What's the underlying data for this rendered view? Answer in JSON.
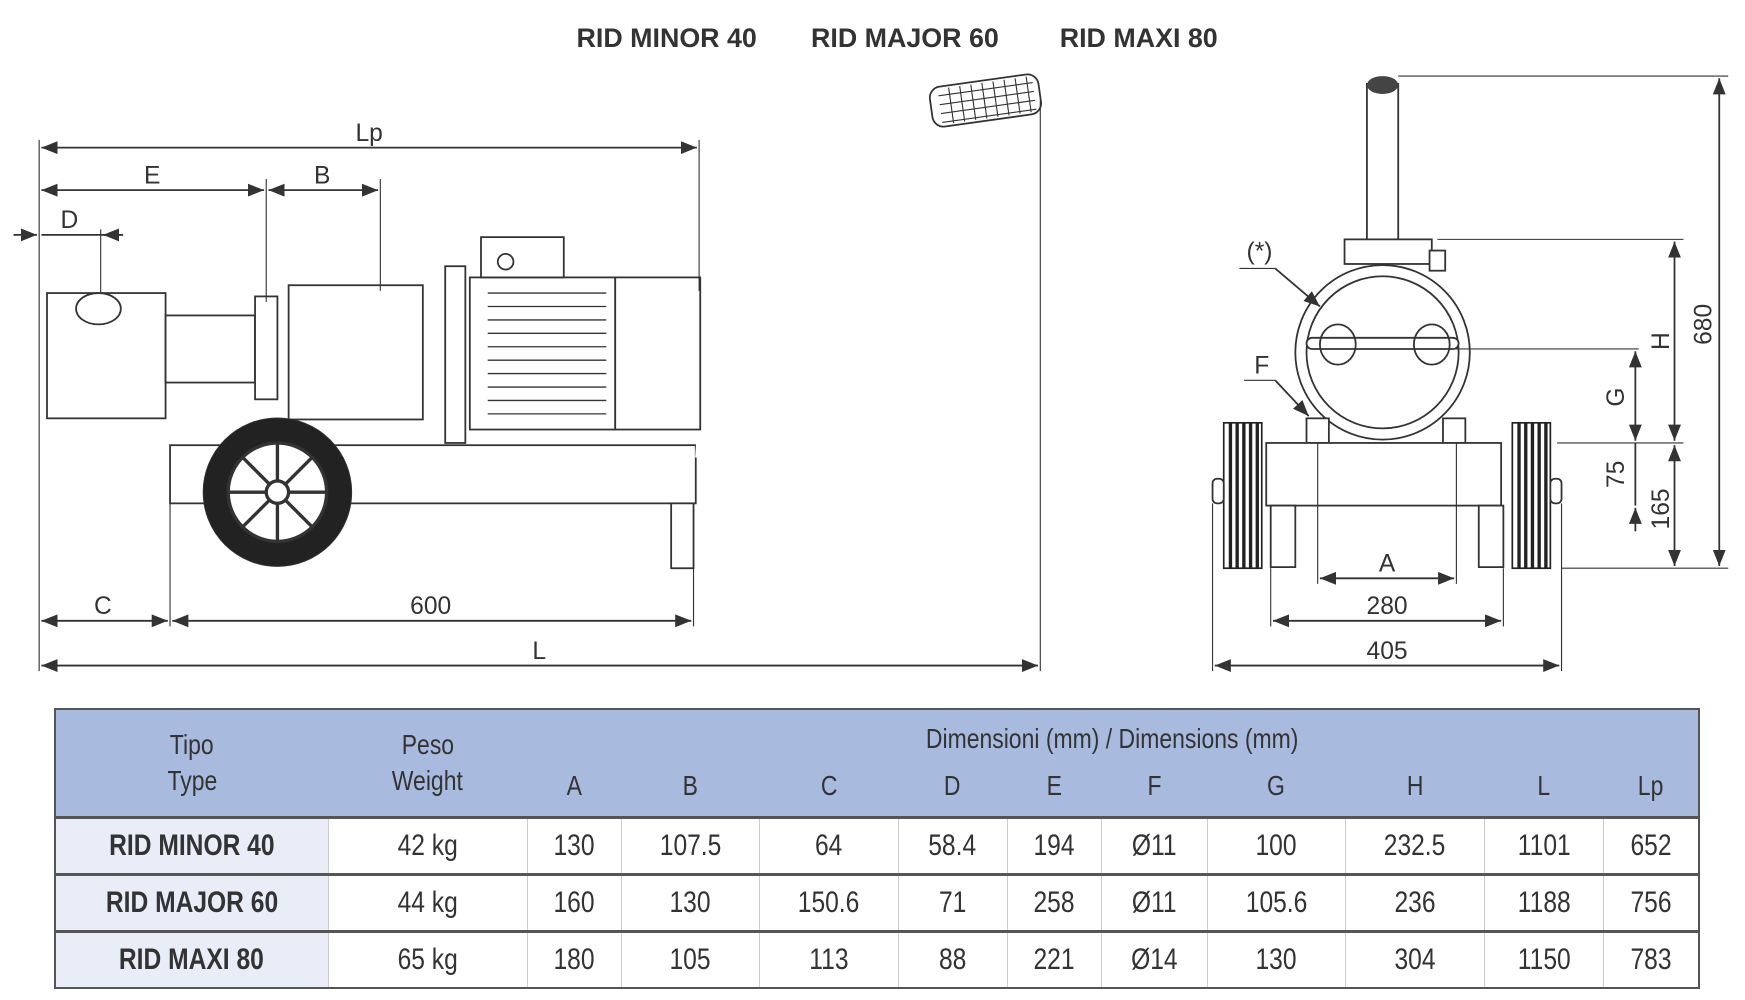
{
  "models_header": [
    "RID MINOR 40",
    "RID MAJOR 60",
    "RID MAXI 80"
  ],
  "side_view_labels": {
    "Lp": "Lp",
    "E": "E",
    "B": "B",
    "D": "D",
    "C": "C",
    "base": "600",
    "L": "L"
  },
  "front_view_labels": {
    "star": "(*)",
    "F": "F",
    "H": "H",
    "G": "G",
    "h75": "75",
    "h165": "165",
    "h680": "680",
    "A": "A",
    "w280": "280",
    "w405": "405"
  },
  "table": {
    "type_header": [
      "Tipo",
      "Type"
    ],
    "weight_header": [
      "Peso",
      "Weight"
    ],
    "dimensions_header": "Dimensioni (mm) / Dimensions (mm)",
    "dim_columns": [
      "A",
      "B",
      "C",
      "D",
      "E",
      "F",
      "G",
      "H",
      "L",
      "Lp"
    ],
    "rows": [
      {
        "type": "RID MINOR 40",
        "weight": "42 kg",
        "dims": [
          "130",
          "107.5",
          "64",
          "58.4",
          "194",
          "Ø11",
          "100",
          "232.5",
          "1101",
          "652"
        ]
      },
      {
        "type": "RID MAJOR 60",
        "weight": "44 kg",
        "dims": [
          "160",
          "130",
          "150.6",
          "71",
          "258",
          "Ø11",
          "105.6",
          "236",
          "1188",
          "756"
        ]
      },
      {
        "type": "RID MAXI 80",
        "weight": "65 kg",
        "dims": [
          "180",
          "105",
          "113",
          "88",
          "221",
          "Ø14",
          "130",
          "304",
          "1150",
          "783"
        ]
      }
    ]
  },
  "colors": {
    "header_bg": "#a9badf",
    "type_col_bg": "#e8edf8",
    "line": "#333333"
  }
}
